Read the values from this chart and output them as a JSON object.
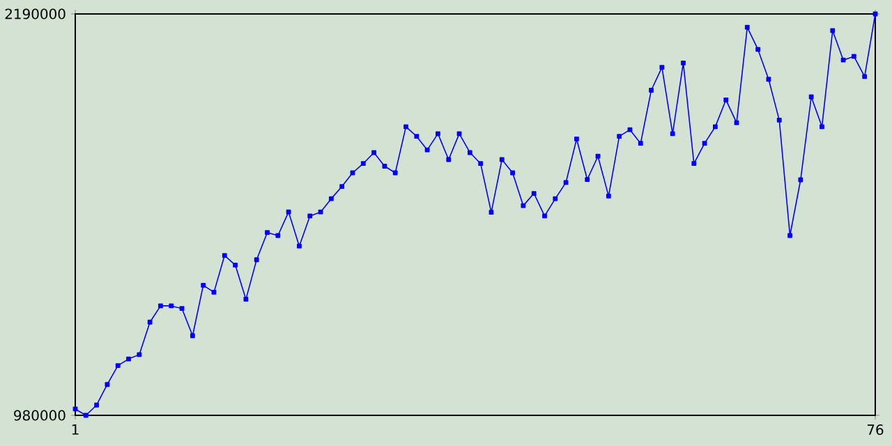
{
  "chart_data": {
    "type": "line",
    "color": "#0000ff",
    "marker": "square",
    "x": [
      1,
      2,
      3,
      4,
      5,
      6,
      7,
      8,
      9,
      10,
      11,
      12,
      13,
      14,
      15,
      16,
      17,
      18,
      19,
      20,
      21,
      22,
      23,
      24,
      25,
      26,
      27,
      28,
      29,
      30,
      31,
      32,
      33,
      34,
      35,
      36,
      37,
      38,
      39,
      40,
      41,
      42,
      43,
      44,
      45,
      46,
      47,
      48,
      49,
      50,
      51,
      52,
      53,
      54,
      55,
      56,
      57,
      58,
      59,
      60,
      61,
      62,
      63,
      64,
      65,
      66,
      67,
      68,
      69,
      70,
      71,
      72,
      73,
      74,
      75,
      76
    ],
    "values": [
      999000,
      980000,
      1011000,
      1073000,
      1130000,
      1150000,
      1163000,
      1261000,
      1310000,
      1310000,
      1302000,
      1220000,
      1372000,
      1351000,
      1462000,
      1433000,
      1330000,
      1449000,
      1531000,
      1522000,
      1593000,
      1490000,
      1581000,
      1593000,
      1633000,
      1670000,
      1711000,
      1739000,
      1772000,
      1731000,
      1711000,
      1850000,
      1821000,
      1780000,
      1829000,
      1751000,
      1829000,
      1772000,
      1739000,
      1592000,
      1751000,
      1711000,
      1612000,
      1649000,
      1581000,
      1633000,
      1682000,
      1813000,
      1691000,
      1761000,
      1641000,
      1821000,
      1841000,
      1800000,
      1960000,
      2029000,
      1829000,
      2042000,
      1739000,
      1800000,
      1850000,
      1931000,
      1862000,
      2150000,
      2083000,
      1993000,
      1870000,
      1522000,
      1690000,
      1940000,
      1850000,
      2140000,
      2051000,
      2062000,
      2001000,
      2190000
    ],
    "xlim": [
      1,
      76
    ],
    "xticks": [
      1,
      76
    ],
    "ylim": [
      980000,
      2190000
    ],
    "yticks": [
      980000,
      2190000
    ]
  }
}
